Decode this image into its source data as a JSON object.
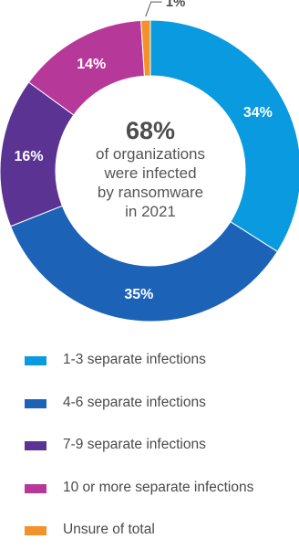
{
  "chart_data": {
    "type": "pie",
    "variant": "donut",
    "center": {
      "value": "68%",
      "lines": [
        "of organizations",
        "were infected",
        "by ransomware",
        "in 2021"
      ]
    },
    "slices": [
      {
        "label": "1-3 separate infections",
        "value": 34,
        "display": "34%",
        "color": "#0a9ae0"
      },
      {
        "label": "4-6 separate infections",
        "value": 35,
        "display": "35%",
        "color": "#1c63b8"
      },
      {
        "label": "7-9 separate infections",
        "value": 16,
        "display": "16%",
        "color": "#5b3393"
      },
      {
        "label": "10 or more separate infections",
        "value": 14,
        "display": "14%",
        "color": "#b6399a"
      },
      {
        "label": "Unsure of total",
        "value": 1,
        "display": "1%",
        "color": "#f3912b"
      }
    ],
    "legend_position": "bottom"
  }
}
